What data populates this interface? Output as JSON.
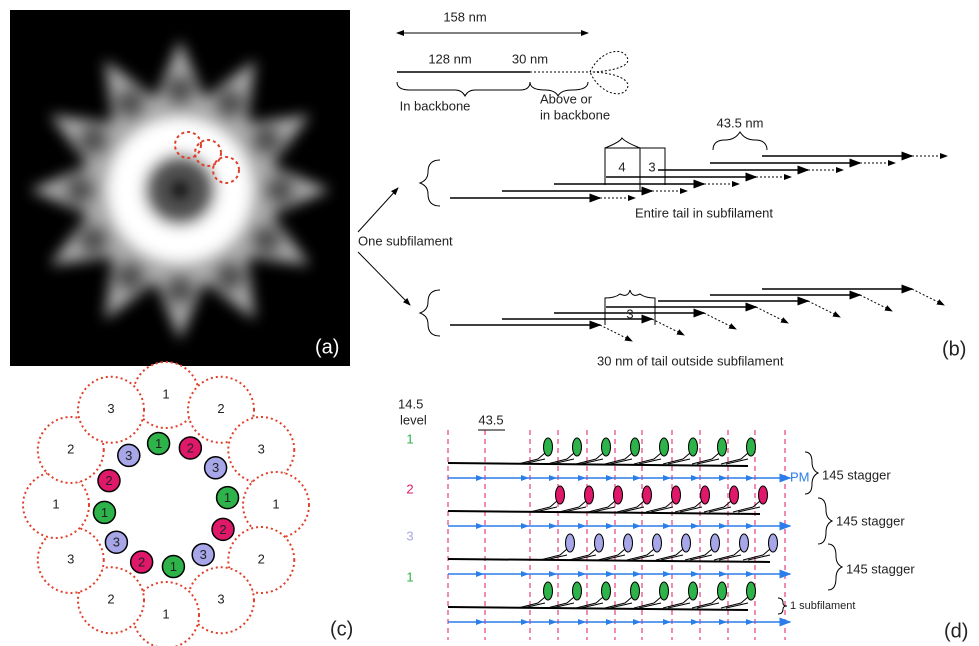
{
  "panel_labels": [
    "(a)",
    "(b)",
    "(c)",
    "(d)"
  ],
  "panel_b": {
    "total": "158 nm",
    "backbone_length": "128 nm",
    "tail_length": "30 nm",
    "in_backbone": "In backbone",
    "above": [
      "Above or",
      "in backbone"
    ],
    "spacing": "43.5 nm",
    "gap_labels": [
      "4",
      "3"
    ],
    "entire_tail": "Entire tail in subfilament",
    "one_subfilament": "One subfilament",
    "lower_gap": "3",
    "outside": "30 nm of tail outside subfilament"
  },
  "panel_c": {
    "outer": [
      "1",
      "2",
      "3",
      "1",
      "2",
      "3",
      "1",
      "2",
      "3",
      "1",
      "2",
      "3"
    ],
    "inner": [
      "1",
      "2",
      "3",
      "1",
      "2",
      "3",
      "1",
      "2",
      "3",
      "1",
      "2",
      "3"
    ]
  },
  "panel_d": {
    "header": [
      "14.5",
      "level"
    ],
    "spacing": "43.5",
    "levels": [
      "1",
      "2",
      "3",
      "1"
    ],
    "pm": "PM",
    "stagger": [
      "145 stagger",
      "145 stagger",
      "145 stagger"
    ],
    "subfilament": "1 subfilament"
  }
}
